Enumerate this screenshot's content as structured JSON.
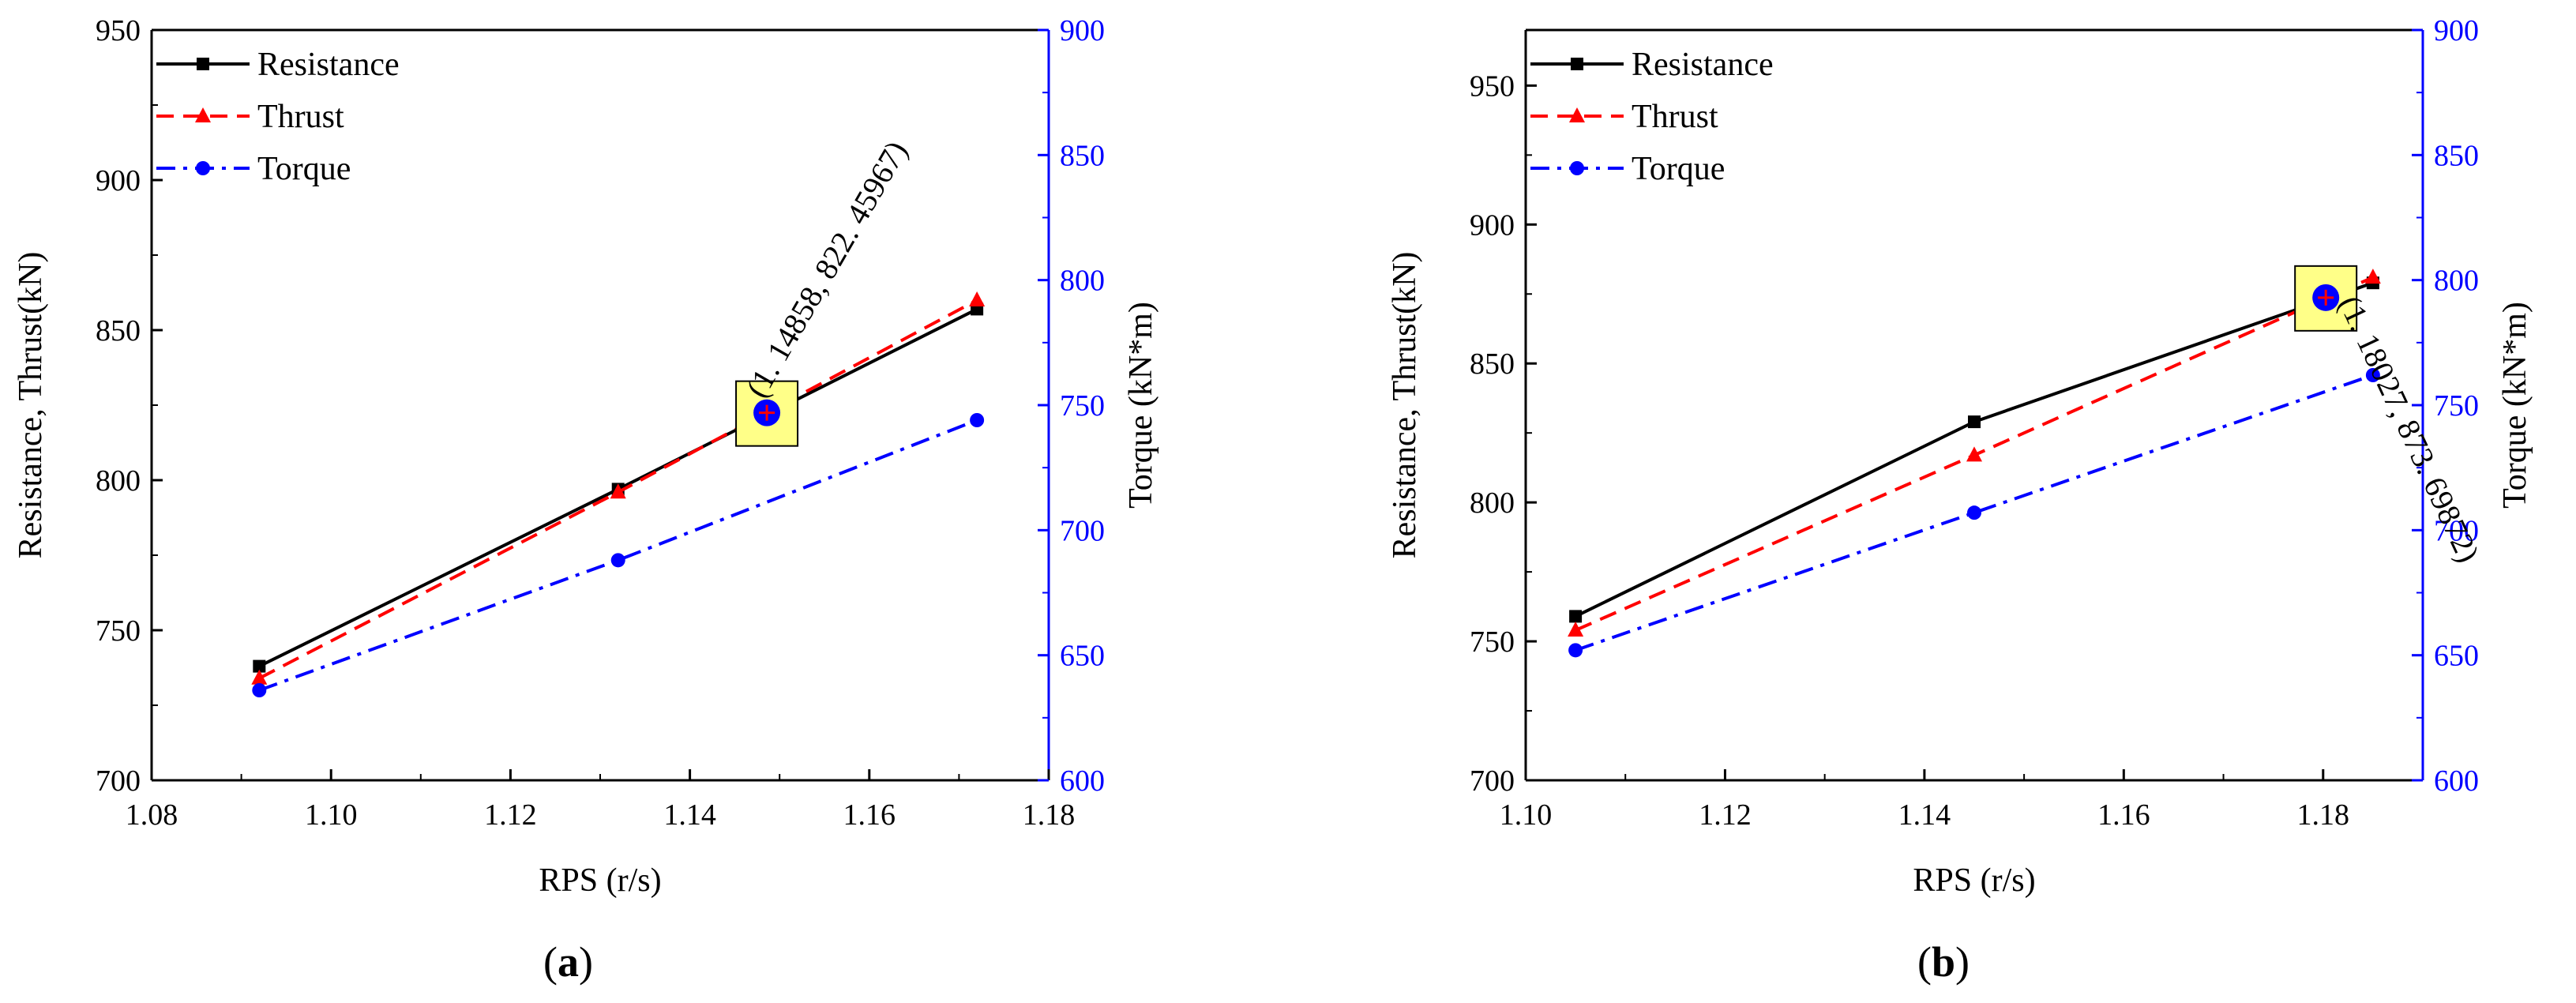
{
  "chart_data": [
    {
      "type": "line",
      "panel_label": "a",
      "xlabel": "RPS (r/s)",
      "ylabel": "Resistance, Thrust(kN)",
      "y2label": "Torque (kN*m)",
      "xlim": [
        1.08,
        1.18
      ],
      "ylim": [
        700,
        950
      ],
      "y2lim": [
        600,
        900
      ],
      "xticks": [
        "1.08",
        "1.10",
        "1.12",
        "1.14",
        "1.16",
        "1.18"
      ],
      "yticks": [
        "700",
        "750",
        "800",
        "850",
        "900",
        "950"
      ],
      "y2ticks": [
        "600",
        "650",
        "700",
        "750",
        "800",
        "850",
        "900"
      ],
      "series": [
        {
          "name": "Resistance",
          "axis": "left",
          "color": "#000000",
          "marker": "square",
          "dash": "solid",
          "x": [
            1.092,
            1.132,
            1.172
          ],
          "values": [
            738,
            797,
            857
          ]
        },
        {
          "name": "Thrust",
          "axis": "left",
          "color": "#ff0000",
          "marker": "triangle",
          "dash": "dash",
          "x": [
            1.092,
            1.132,
            1.172
          ],
          "values": [
            734,
            796,
            860
          ]
        },
        {
          "name": "Torque",
          "axis": "right",
          "color": "#0000ff",
          "marker": "circle",
          "dash": "dashdot",
          "x": [
            1.092,
            1.132,
            1.172
          ],
          "values": [
            636,
            688,
            744
          ]
        }
      ],
      "annotation": {
        "text": "(1. 14858, 822. 45967)",
        "x": 1.14858,
        "y": 822.45967,
        "rotation": -60
      }
    },
    {
      "type": "line",
      "panel_label": "b",
      "xlabel": "RPS (r/s)",
      "ylabel": "Resistance, Thrust(kN)",
      "y2label": "Torque (kN*m)",
      "xlim": [
        1.1,
        1.19
      ],
      "ylim": [
        700,
        970
      ],
      "y2lim": [
        600,
        900
      ],
      "xticks": [
        "1.10",
        "1.12",
        "1.14",
        "1.16",
        "1.18"
      ],
      "yticks": [
        "700",
        "750",
        "800",
        "850",
        "900",
        "950"
      ],
      "y2ticks": [
        "600",
        "650",
        "700",
        "750",
        "800",
        "850",
        "900"
      ],
      "series": [
        {
          "name": "Resistance",
          "axis": "left",
          "color": "#000000",
          "marker": "square",
          "dash": "solid",
          "x": [
            1.105,
            1.145,
            1.185
          ],
          "values": [
            759,
            829,
            879
          ]
        },
        {
          "name": "Thrust",
          "axis": "left",
          "color": "#ff0000",
          "marker": "triangle",
          "dash": "dash",
          "x": [
            1.105,
            1.145,
            1.185
          ],
          "values": [
            754,
            817,
            881
          ]
        },
        {
          "name": "Torque",
          "axis": "right",
          "color": "#0000ff",
          "marker": "circle",
          "dash": "dashdot",
          "x": [
            1.105,
            1.145,
            1.185
          ],
          "values": [
            652,
            707,
            762
          ]
        }
      ],
      "annotation": {
        "text": "(1. 18027, 873. 69872)",
        "x": 1.18027,
        "y": 873.69872,
        "rotation": 65
      }
    }
  ]
}
